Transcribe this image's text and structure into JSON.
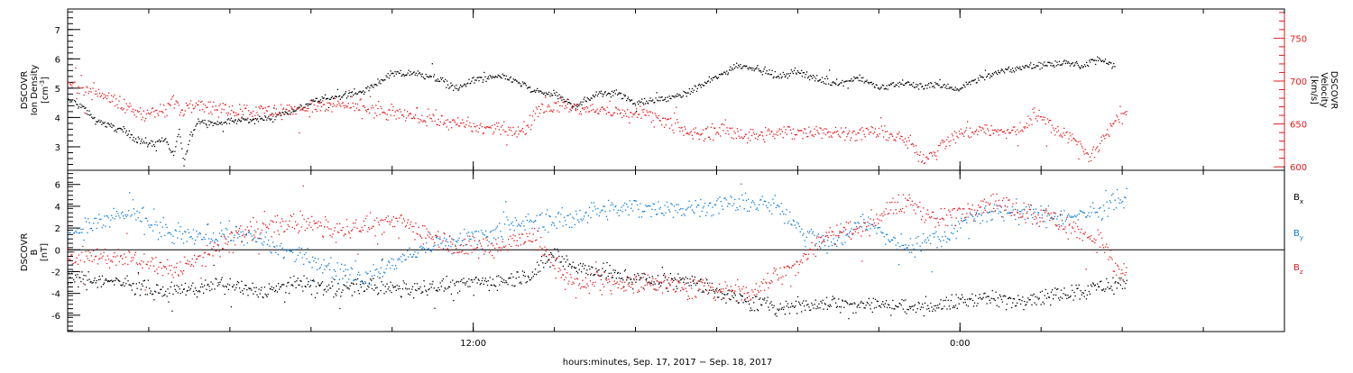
{
  "chart_data": [
    {
      "type": "scatter",
      "panel": "top",
      "xlim_hours": [
        2,
        32
      ],
      "left_axis": {
        "label_lines": [
          "DSCOVR",
          "Ion Density"
        ],
        "unit_text": "[cm",
        "unit_sup": "-3",
        "unit_close": "]",
        "ylim": [
          2.2,
          7.7
        ],
        "ticks": [
          3,
          4,
          5,
          6,
          7
        ]
      },
      "right_axis": {
        "label_lines": [
          "DSCOVR",
          "Velocity",
          "[km/s]"
        ],
        "ylim": [
          596,
          784
        ],
        "ticks": [
          600,
          650,
          700,
          750
        ],
        "color": "#e41a1c"
      },
      "series": [
        {
          "role": "density",
          "color": "#000000",
          "anchors": [
            [
              0,
              4.6
            ],
            [
              0.35,
              4.4
            ],
            [
              0.6,
              4.0
            ],
            [
              0.9,
              3.8
            ],
            [
              1.3,
              3.6
            ],
            [
              1.8,
              3.2
            ],
            [
              2.1,
              3.1
            ],
            [
              2.4,
              3.3
            ],
            [
              2.6,
              2.7
            ],
            [
              2.75,
              3.6
            ],
            [
              2.85,
              2.4
            ],
            [
              3.0,
              3.3
            ],
            [
              3.2,
              3.9
            ],
            [
              3.6,
              3.8
            ],
            [
              4.0,
              3.9
            ],
            [
              5.0,
              4.0
            ],
            [
              5.6,
              4.3
            ],
            [
              6.2,
              4.6
            ],
            [
              6.8,
              4.8
            ],
            [
              7.3,
              4.9
            ],
            [
              7.6,
              5.2
            ],
            [
              8.0,
              5.5
            ],
            [
              8.6,
              5.5
            ],
            [
              9.0,
              5.4
            ],
            [
              9.6,
              5.0
            ],
            [
              10.0,
              5.3
            ],
            [
              10.6,
              5.4
            ],
            [
              11.0,
              5.3
            ],
            [
              11.5,
              4.9
            ],
            [
              12.0,
              4.8
            ],
            [
              12.5,
              4.4
            ],
            [
              13.0,
              4.8
            ],
            [
              13.5,
              4.9
            ],
            [
              14.0,
              4.5
            ],
            [
              14.5,
              4.6
            ],
            [
              15.2,
              4.8
            ],
            [
              15.6,
              5.1
            ],
            [
              16.0,
              5.4
            ],
            [
              16.5,
              5.8
            ],
            [
              17.0,
              5.7
            ],
            [
              17.5,
              5.4
            ],
            [
              18.0,
              5.6
            ],
            [
              18.5,
              5.3
            ],
            [
              19.0,
              5.2
            ],
            [
              19.5,
              5.4
            ],
            [
              20.0,
              5.0
            ],
            [
              20.5,
              5.2
            ],
            [
              21.0,
              5.1
            ],
            [
              21.5,
              5.1
            ],
            [
              22.0,
              5.0
            ],
            [
              22.5,
              5.4
            ],
            [
              23.0,
              5.6
            ],
            [
              23.5,
              5.7
            ],
            [
              24.0,
              5.8
            ],
            [
              24.5,
              5.9
            ],
            [
              25.0,
              5.8
            ],
            [
              25.4,
              6.0
            ],
            [
              25.7,
              5.8
            ]
          ],
          "count": 1150,
          "jitter": 0.11,
          "t_range": [
            0,
            25.8
          ]
        },
        {
          "role": "velocity",
          "color": "#e41a1c",
          "anchors": [
            [
              0,
              700
            ],
            [
              0.4,
              690
            ],
            [
              0.8,
              688
            ],
            [
              1.1,
              678
            ],
            [
              1.5,
              668
            ],
            [
              1.9,
              662
            ],
            [
              2.2,
              664
            ],
            [
              2.4,
              665
            ],
            [
              2.6,
              680
            ],
            [
              2.8,
              665
            ],
            [
              3.0,
              676
            ],
            [
              3.2,
              675
            ],
            [
              3.6,
              670
            ],
            [
              4.2,
              667
            ],
            [
              5.0,
              665
            ],
            [
              6.0,
              670
            ],
            [
              6.8,
              672
            ],
            [
              7.4,
              668
            ],
            [
              8.0,
              662
            ],
            [
              8.6,
              660
            ],
            [
              9.0,
              657
            ],
            [
              9.6,
              650
            ],
            [
              10.2,
              646
            ],
            [
              10.6,
              645
            ],
            [
              11.2,
              642
            ],
            [
              11.6,
              668
            ],
            [
              12.2,
              672
            ],
            [
              12.6,
              668
            ],
            [
              13.2,
              666
            ],
            [
              13.6,
              662
            ],
            [
              14.2,
              662
            ],
            [
              14.7,
              656
            ],
            [
              15.2,
              640
            ],
            [
              15.6,
              638
            ],
            [
              16.2,
              645
            ],
            [
              16.8,
              636
            ],
            [
              17.6,
              640
            ],
            [
              18.4,
              643
            ],
            [
              19.0,
              640
            ],
            [
              19.6,
              640
            ],
            [
              20.0,
              642
            ],
            [
              20.4,
              636
            ],
            [
              20.8,
              626
            ],
            [
              21.1,
              610
            ],
            [
              21.5,
              625
            ],
            [
              22.0,
              640
            ],
            [
              22.6,
              645
            ],
            [
              23.0,
              640
            ],
            [
              23.5,
              644
            ],
            [
              23.8,
              664
            ],
            [
              24.2,
              650
            ],
            [
              24.6,
              640
            ],
            [
              25.0,
              622
            ],
            [
              25.2,
              612
            ],
            [
              25.5,
              630
            ],
            [
              25.8,
              655
            ],
            [
              26.0,
              662
            ]
          ],
          "count": 1150,
          "jitter": 8,
          "t_range": [
            0,
            26.1
          ]
        }
      ]
    },
    {
      "type": "scatter",
      "panel": "bottom",
      "xlim_hours": [
        2,
        32
      ],
      "left_axis": {
        "label_lines": [
          "DSCOVR",
          "B",
          "[nT]"
        ],
        "ylim": [
          -7.5,
          7.3
        ],
        "ticks": [
          -6,
          -4,
          -2,
          0,
          2,
          4,
          6
        ]
      },
      "zero_line": true,
      "series": [
        {
          "name": "B",
          "sub": "x",
          "color": "#000000",
          "anchors": [
            [
              0,
              -2.6
            ],
            [
              1.5,
              -3.0
            ],
            [
              2.2,
              -3.9
            ],
            [
              3.0,
              -3.6
            ],
            [
              3.8,
              -3.2
            ],
            [
              4.8,
              -3.8
            ],
            [
              5.8,
              -3.0
            ],
            [
              6.6,
              -3.6
            ],
            [
              7.4,
              -3.2
            ],
            [
              8.2,
              -3.6
            ],
            [
              9.2,
              -3.4
            ],
            [
              10.0,
              -3.0
            ],
            [
              10.8,
              -2.8
            ],
            [
              11.4,
              -2.2
            ],
            [
              12.0,
              -0.4
            ],
            [
              12.6,
              -1.6
            ],
            [
              13.2,
              -2.0
            ],
            [
              13.8,
              -2.6
            ],
            [
              14.5,
              -2.8
            ],
            [
              15.2,
              -2.6
            ],
            [
              15.6,
              -3.2
            ],
            [
              16.2,
              -4.0
            ],
            [
              16.8,
              -4.8
            ],
            [
              17.6,
              -5.2
            ],
            [
              18.4,
              -5.0
            ],
            [
              19.2,
              -4.8
            ],
            [
              20.0,
              -5.0
            ],
            [
              20.8,
              -5.2
            ],
            [
              21.6,
              -5.0
            ],
            [
              22.4,
              -4.4
            ],
            [
              23.2,
              -4.6
            ],
            [
              24.0,
              -4.2
            ],
            [
              24.6,
              -3.8
            ],
            [
              25.2,
              -3.6
            ],
            [
              25.6,
              -3.2
            ],
            [
              26.0,
              -3.0
            ]
          ],
          "count": 1150,
          "jitter": 0.7,
          "t_range": [
            0,
            26.1
          ]
        },
        {
          "name": "B",
          "sub": "y",
          "color": "#0a7ad6",
          "anchors": [
            [
              0,
              1.6
            ],
            [
              0.8,
              2.6
            ],
            [
              1.6,
              3.4
            ],
            [
              2.2,
              2.0
            ],
            [
              2.8,
              1.2
            ],
            [
              3.5,
              1.4
            ],
            [
              4.2,
              1.6
            ],
            [
              5.0,
              0.4
            ],
            [
              5.8,
              -0.6
            ],
            [
              6.6,
              -1.8
            ],
            [
              7.4,
              -2.6
            ],
            [
              8.2,
              -0.8
            ],
            [
              9.0,
              0.4
            ],
            [
              9.8,
              1.0
            ],
            [
              10.6,
              1.8
            ],
            [
              11.4,
              2.6
            ],
            [
              12.2,
              2.8
            ],
            [
              13.0,
              3.6
            ],
            [
              13.8,
              3.8
            ],
            [
              14.5,
              4.0
            ],
            [
              15.2,
              3.8
            ],
            [
              16.0,
              4.2
            ],
            [
              16.8,
              4.4
            ],
            [
              17.6,
              3.8
            ],
            [
              18.2,
              1.6
            ],
            [
              18.8,
              0.4
            ],
            [
              19.6,
              2.8
            ],
            [
              20.4,
              0.6
            ],
            [
              21.0,
              0.6
            ],
            [
              21.6,
              1.4
            ],
            [
              22.4,
              3.2
            ],
            [
              23.2,
              3.6
            ],
            [
              24.0,
              3.2
            ],
            [
              24.8,
              3.0
            ],
            [
              25.6,
              4.0
            ],
            [
              26.0,
              4.8
            ]
          ],
          "count": 1000,
          "jitter": 0.85,
          "t_range": [
            0,
            26.1
          ]
        },
        {
          "name": "B",
          "sub": "z",
          "color": "#e41a1c",
          "anchors": [
            [
              0,
              -0.8
            ],
            [
              1.0,
              -0.6
            ],
            [
              1.8,
              -1.2
            ],
            [
              2.6,
              -1.8
            ],
            [
              3.4,
              -0.6
            ],
            [
              4.2,
              1.6
            ],
            [
              5.0,
              2.2
            ],
            [
              5.8,
              2.6
            ],
            [
              6.6,
              1.8
            ],
            [
              7.4,
              2.2
            ],
            [
              8.2,
              2.6
            ],
            [
              9.0,
              1.2
            ],
            [
              9.8,
              0.2
            ],
            [
              10.6,
              0.4
            ],
            [
              11.4,
              1.4
            ],
            [
              12.0,
              -1.4
            ],
            [
              12.5,
              -3.4
            ],
            [
              13.0,
              -2.6
            ],
            [
              13.8,
              -3.2
            ],
            [
              14.6,
              -2.8
            ],
            [
              15.2,
              -3.6
            ],
            [
              16.0,
              -3.4
            ],
            [
              16.8,
              -4.0
            ],
            [
              17.6,
              -2.0
            ],
            [
              18.2,
              -0.4
            ],
            [
              18.8,
              1.6
            ],
            [
              19.6,
              2.0
            ],
            [
              20.2,
              3.8
            ],
            [
              20.8,
              4.4
            ],
            [
              21.4,
              2.6
            ],
            [
              22.0,
              3.6
            ],
            [
              22.8,
              4.6
            ],
            [
              23.6,
              3.6
            ],
            [
              24.2,
              3.0
            ],
            [
              25.0,
              1.6
            ],
            [
              25.5,
              0.8
            ],
            [
              25.8,
              -1.6
            ],
            [
              26.0,
              -2.2
            ]
          ],
          "count": 1100,
          "jitter": 0.9,
          "t_range": [
            0,
            26.1
          ]
        }
      ]
    }
  ],
  "x_axis": {
    "tick_labels": [
      {
        "hour": 12,
        "text": "12:00"
      },
      {
        "hour": 24,
        "text": "0:00"
      }
    ],
    "minor_every_hours": 2,
    "xlabel": "hours:minutes, Sep. 17, 2017 − Sep. 18, 2017"
  }
}
